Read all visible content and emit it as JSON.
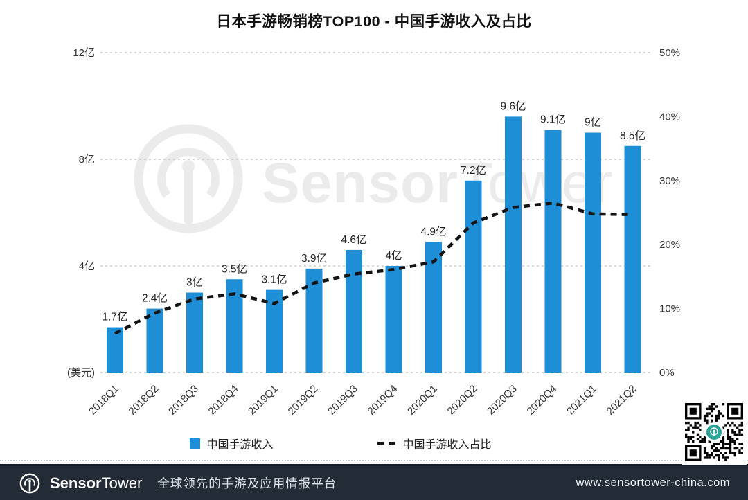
{
  "page": {
    "title": "日本手游畅销榜TOP100 - 中国手游收入及占比"
  },
  "chart_data": {
    "type": "bar",
    "title": "日本手游畅销榜TOP100 - 中国手游收入及占比",
    "categories": [
      "2018Q1",
      "2018Q2",
      "2018Q3",
      "2018Q4",
      "2019Q1",
      "2019Q2",
      "2019Q3",
      "2019Q4",
      "2020Q1",
      "2020Q2",
      "2020Q3",
      "2020Q4",
      "2021Q1",
      "2021Q2"
    ],
    "series": [
      {
        "name": "中国手游收入",
        "type": "bar",
        "axis": "left",
        "unit": "亿 (美元)",
        "values": [
          1.7,
          2.4,
          3,
          3.5,
          3.1,
          3.9,
          4.6,
          4,
          4.9,
          7.2,
          9.6,
          9.1,
          9,
          8.5
        ],
        "labels": [
          "1.7亿",
          "2.4亿",
          "3亿",
          "3.5亿",
          "3.1亿",
          "3.9亿",
          "4.6亿",
          "4亿",
          "4.9亿",
          "7.2亿",
          "9.6亿",
          "9.1亿",
          "9亿",
          "8.5亿"
        ]
      },
      {
        "name": "中国手游收入占比",
        "type": "line",
        "style": "dashed",
        "axis": "right",
        "unit": "%",
        "values_estimated_from_pixels": true,
        "values": [
          6.1,
          9.3,
          11.5,
          12.3,
          10.8,
          14,
          15.4,
          16.1,
          17.3,
          23.4,
          25.8,
          26.5,
          24.8,
          24.7
        ]
      }
    ],
    "left_axis": {
      "min": 0,
      "max": 12,
      "tick_values": [
        12,
        8,
        4
      ],
      "tick_labels": [
        "12亿",
        "8亿",
        "4亿"
      ],
      "baseline_label": "(美元)"
    },
    "right_axis": {
      "min": 0,
      "max": 50,
      "tick_values": [
        50,
        40,
        30,
        20,
        10,
        0
      ],
      "tick_labels": [
        "50%",
        "40%",
        "30%",
        "20%",
        "10%",
        "0%"
      ]
    },
    "grid": "dashed horizontal at left-axis ticks",
    "legend_position": "bottom"
  },
  "legend": {
    "revenue_label": "中国手游收入",
    "share_label": "中国手游收入占比"
  },
  "watermark": {
    "brand_bold": "Sensor",
    "brand_light": "Tower"
  },
  "footer": {
    "brand_bold": "Sensor",
    "brand_light": "Tower",
    "tagline": "全球领先的手游及应用情报平台",
    "url": "www.sensortower-china.com"
  },
  "colors": {
    "bar": "#1e8ed7",
    "line": "#141414",
    "grid": "#c8c8c8",
    "axis_text": "#333333",
    "value_text": "#222222",
    "watermark": "#ebebeb",
    "footer_bg": "#232b37",
    "qr_teal": "#2ba296"
  }
}
